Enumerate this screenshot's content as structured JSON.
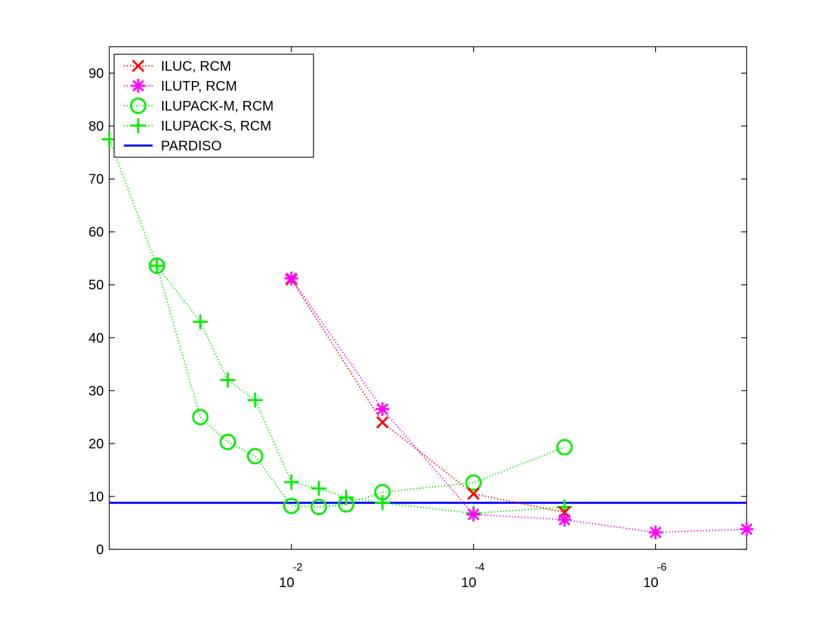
{
  "chart_data": {
    "type": "line",
    "x_scale": "log",
    "x_reversed": true,
    "xlim": [
      1e-07,
      1
    ],
    "ylim": [
      0,
      95
    ],
    "grid": false,
    "legend_position": "top-left",
    "title": "",
    "xlabel": "",
    "ylabel": "",
    "x_ticks": [
      {
        "value": 0.01,
        "base": "10",
        "exp": "-2"
      },
      {
        "value": 0.0001,
        "base": "10",
        "exp": "-4"
      },
      {
        "value": 1e-06,
        "base": "10",
        "exp": "-6"
      }
    ],
    "y_ticks": [
      "0",
      "10",
      "20",
      "30",
      "40",
      "50",
      "60",
      "70",
      "80",
      "90"
    ],
    "series": [
      {
        "name": "ILUC, RCM",
        "color": "#ff0000",
        "marker": "x",
        "line": "dotted",
        "points": [
          [
            0.01,
            51.0
          ],
          [
            0.001,
            24.0
          ],
          [
            0.0001,
            10.5
          ],
          [
            1e-05,
            7.0
          ]
        ]
      },
      {
        "name": "ILUTP, RCM",
        "color": "#ff00ff",
        "marker": "asterisk",
        "line": "dotted",
        "points": [
          [
            0.01,
            51.2
          ],
          [
            0.001,
            26.5
          ],
          [
            0.0001,
            6.6
          ],
          [
            1e-05,
            5.6
          ],
          [
            1e-06,
            3.2
          ],
          [
            1e-07,
            3.8
          ]
        ]
      },
      {
        "name": "ILUPACK-M, RCM",
        "color": "#00ee00",
        "marker": "circle",
        "line": "dotted",
        "points": [
          [
            0.3,
            53.6
          ],
          [
            0.1,
            25.0
          ],
          [
            0.05,
            20.3
          ],
          [
            0.025,
            17.6
          ],
          [
            0.01,
            8.2
          ],
          [
            0.005,
            8.0
          ],
          [
            0.0025,
            8.5
          ],
          [
            0.001,
            10.8
          ],
          [
            0.0001,
            12.6
          ],
          [
            1e-05,
            19.3
          ]
        ]
      },
      {
        "name": "ILUPACK-S, RCM",
        "color": "#00ee00",
        "marker": "plus",
        "line": "dotted",
        "points": [
          [
            1,
            77.5
          ],
          [
            0.3,
            53.6
          ],
          [
            0.1,
            43.0
          ],
          [
            0.05,
            32.0
          ],
          [
            0.025,
            28.2
          ],
          [
            0.01,
            12.7
          ],
          [
            0.005,
            11.5
          ],
          [
            0.0025,
            9.8
          ],
          [
            0.001,
            8.8
          ],
          [
            0.0001,
            6.8
          ],
          [
            1e-05,
            8.0
          ]
        ]
      },
      {
        "name": "PARDISO",
        "color": "#0000ff",
        "marker": "none",
        "line": "solid",
        "points": [
          [
            1,
            8.8
          ],
          [
            1e-07,
            8.8
          ]
        ]
      }
    ]
  }
}
